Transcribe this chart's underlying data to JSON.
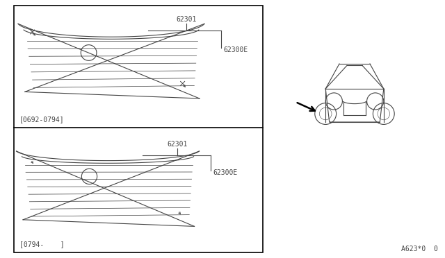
{
  "bg_color": "#ffffff",
  "line_color": "#444444",
  "fig_width": 6.4,
  "fig_height": 3.72,
  "dpi": 100,
  "label_62301_top": "62301",
  "label_62300E_top": "62300E",
  "label_62301_bot": "62301",
  "label_62300E_bot": "62300E",
  "label_top_date": "[0692-0794]",
  "label_bot_date": "[0794-    ]",
  "diagram_ref": "A623*0  0"
}
